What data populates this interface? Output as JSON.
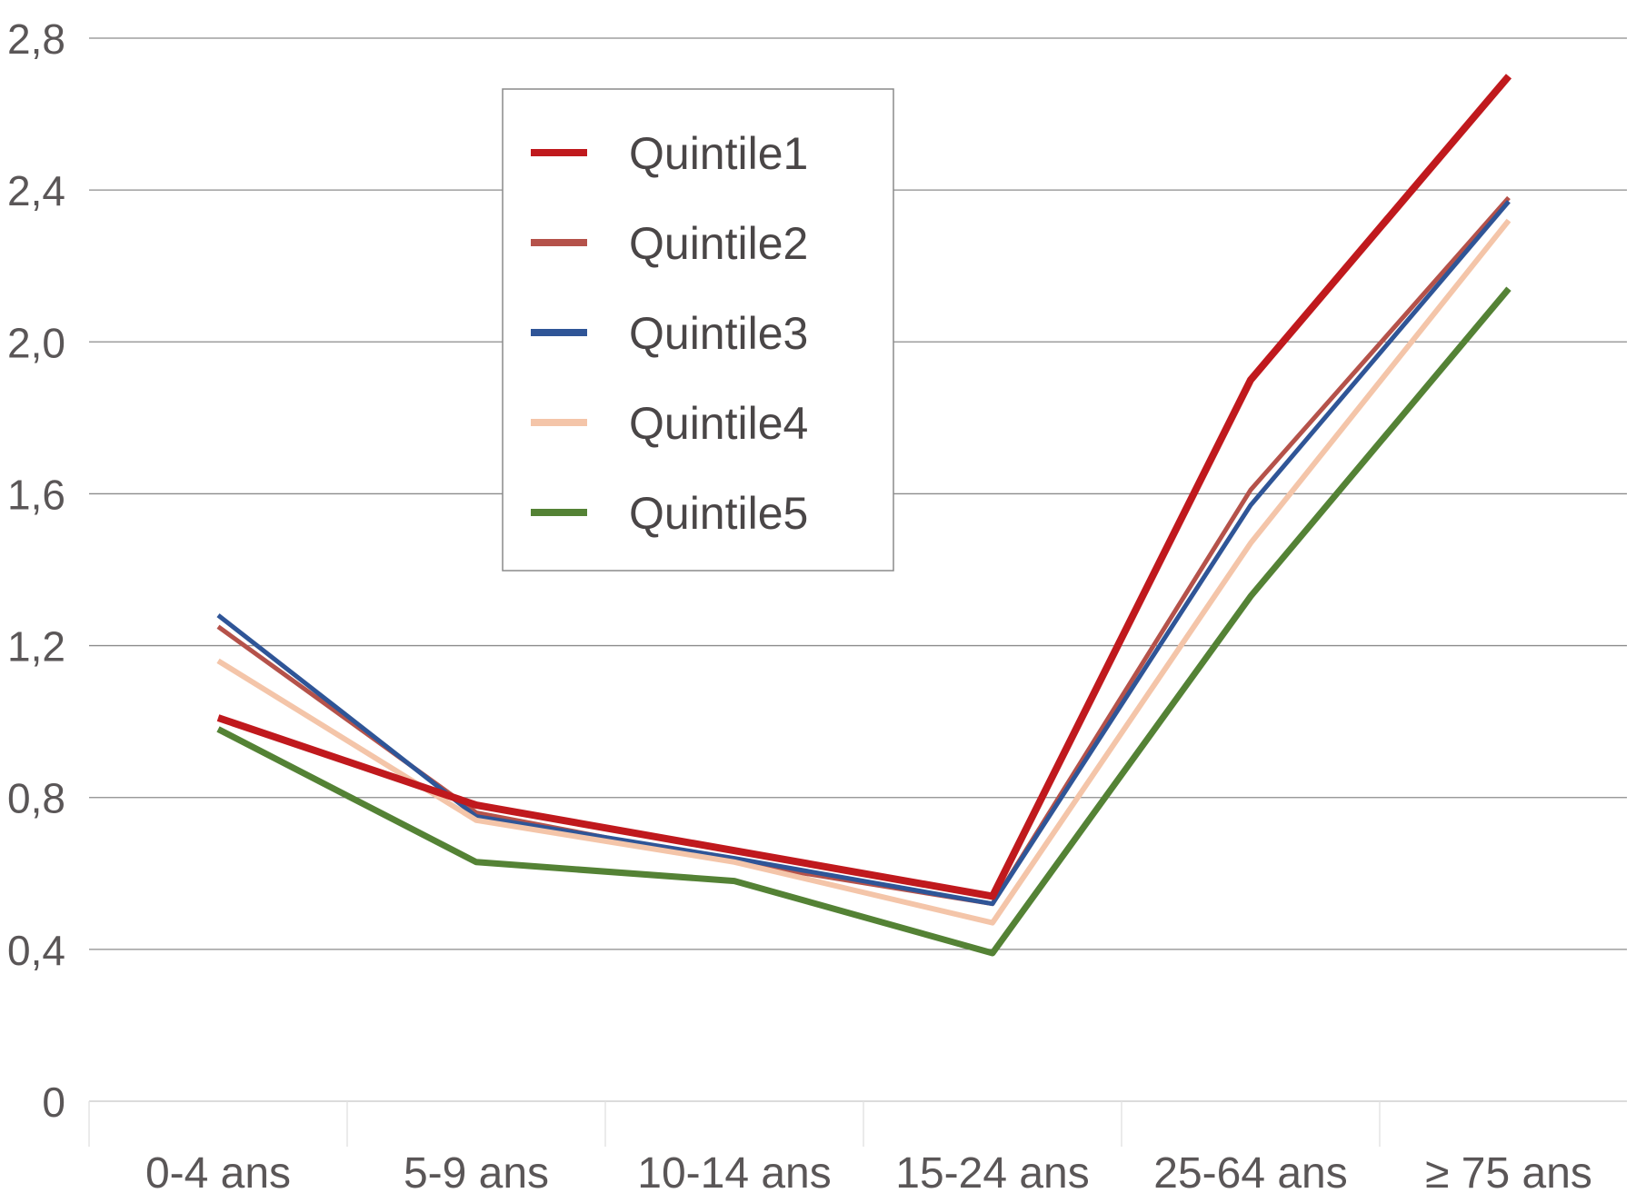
{
  "chart_data": {
    "type": "line",
    "title": "",
    "xlabel": "",
    "ylabel": "",
    "categories": [
      "0-4 ans",
      "5-9 ans",
      "10-14 ans",
      "15-24 ans",
      "25-64 ans",
      "≥ 75 ans"
    ],
    "ylim": [
      0,
      2.8
    ],
    "yticks": [
      "0",
      "0,4",
      "0,8",
      "1,2",
      "1,6",
      "2,0",
      "2,4",
      "2,8"
    ],
    "grid": true,
    "legend_position": "top-center",
    "series": [
      {
        "name": "Quintile1",
        "color": "#c0191d",
        "values": [
          1.01,
          0.78,
          0.66,
          0.54,
          1.9,
          2.7
        ]
      },
      {
        "name": "Quintile2",
        "color": "#b5524a",
        "values": [
          1.25,
          0.76,
          0.63,
          0.52,
          1.61,
          2.38
        ]
      },
      {
        "name": "Quintile3",
        "color": "#2f5597",
        "values": [
          1.28,
          0.75,
          0.64,
          0.52,
          1.57,
          2.37
        ]
      },
      {
        "name": "Quintile4",
        "color": "#f4c5a9",
        "values": [
          1.16,
          0.74,
          0.63,
          0.47,
          1.47,
          2.32
        ]
      },
      {
        "name": "Quintile5",
        "color": "#548235",
        "values": [
          0.98,
          0.63,
          0.58,
          0.39,
          1.33,
          2.14
        ]
      }
    ]
  }
}
